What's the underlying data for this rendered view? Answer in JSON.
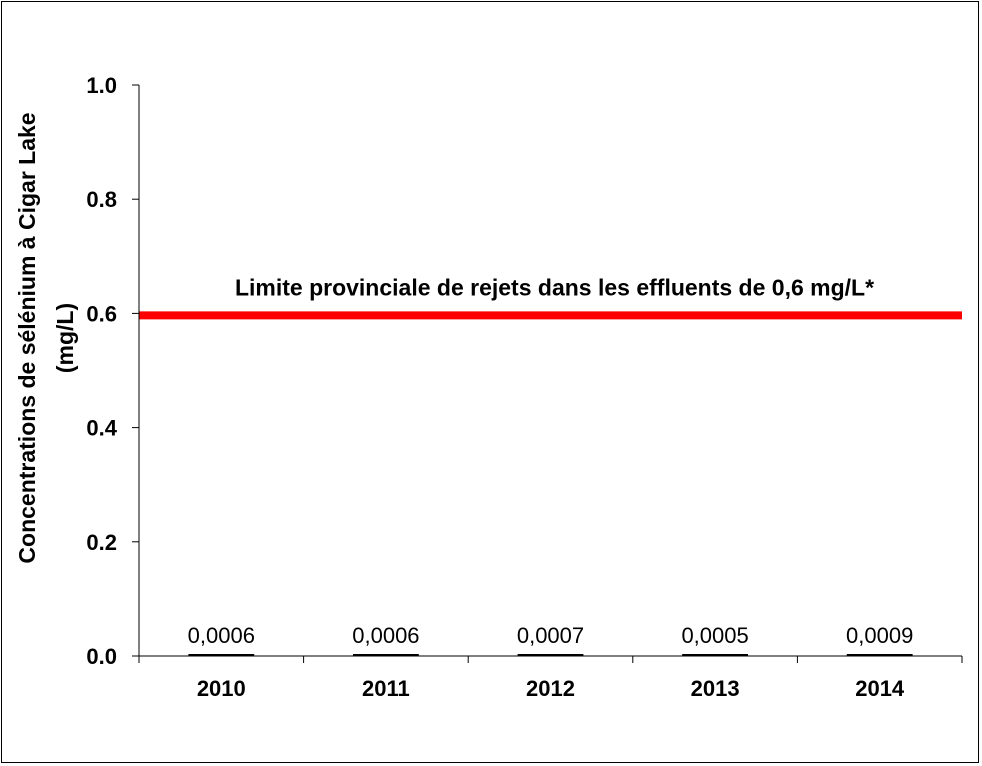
{
  "chart_data": {
    "type": "bar",
    "title": "",
    "xlabel": "",
    "ylabel_line1": "Concentrations de sélénium à Cigar Lake",
    "ylabel_line2": "(mg/L)",
    "categories": [
      "2010",
      "2011",
      "2012",
      "2013",
      "2014"
    ],
    "values": [
      0.0006,
      0.0006,
      0.0007,
      0.0005,
      0.0009
    ],
    "value_labels": [
      "0,0006",
      "0,0006",
      "0,0007",
      "0,0005",
      "0,0009"
    ],
    "ylim": [
      0,
      1.0
    ],
    "yticks": [
      "0.0",
      "0.2",
      "0.4",
      "0.6",
      "0.8",
      "1.0"
    ],
    "ytick_values": [
      0,
      0.2,
      0.4,
      0.6,
      0.8,
      1.0
    ],
    "grid": false,
    "bar_color": "#000000",
    "reference_line": {
      "value": 0.6,
      "color": "#ff0000",
      "label": "Limite provinciale de rejets dans les effluents de 0,6 mg/L*"
    }
  }
}
